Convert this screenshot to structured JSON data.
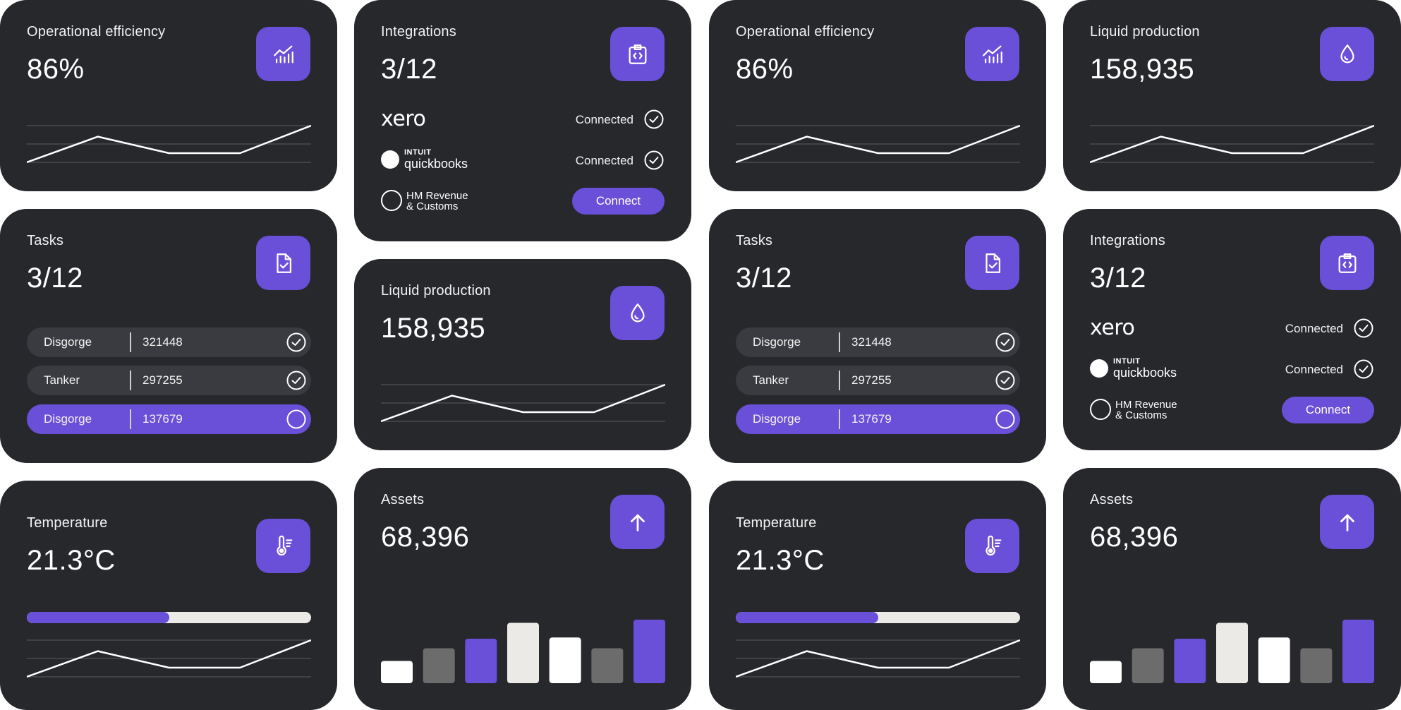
{
  "colors": {
    "card": "#26282c",
    "accent": "#6a4fd8",
    "light": "#eceae6",
    "white": "#ffffff",
    "grey": "#6c6c6c",
    "grid": "#5a5c60"
  },
  "efficiency": {
    "title": "Operational efficiency",
    "value": "86%",
    "icon": "chart-icon",
    "trend": [
      0,
      0.7,
      0.25,
      0.25,
      1.0
    ]
  },
  "integrations": {
    "title": "Integrations",
    "value": "3/12",
    "icon": "code-clipboard-icon",
    "items": [
      {
        "logo": "xero",
        "status": "Connected"
      },
      {
        "logo_small": "INTUIT",
        "logo": "quickbooks",
        "status": "Connected"
      },
      {
        "logo_line1": "HM Revenue",
        "logo_line2": "& Customs",
        "action": "Connect"
      }
    ]
  },
  "liquid": {
    "title": "Liquid production",
    "value": "158,935",
    "icon": "droplet-icon",
    "trend": [
      0,
      0.7,
      0.25,
      0.25,
      1.0
    ]
  },
  "tasks": {
    "title": "Tasks",
    "value": "3/12",
    "icon": "document-check-icon",
    "items": [
      {
        "name": "Disgorge",
        "number": "321448",
        "done": true
      },
      {
        "name": "Tanker",
        "number": "297255",
        "done": true
      },
      {
        "name": "Disgorge",
        "number": "137679",
        "done": false
      }
    ]
  },
  "temperature": {
    "title": "Temperature",
    "value": "21.3°C",
    "icon": "thermometer-icon",
    "progress": 0.5,
    "trend": [
      0,
      0.7,
      0.25,
      0.25,
      1.0
    ]
  },
  "assets": {
    "title": "Assets",
    "value": "68,396",
    "icon": "arrow-up-icon",
    "bars": [
      {
        "value": 0.35,
        "color": "white"
      },
      {
        "value": 0.55,
        "color": "grey"
      },
      {
        "value": 0.7,
        "color": "accent"
      },
      {
        "value": 0.95,
        "color": "light"
      },
      {
        "value": 0.72,
        "color": "white"
      },
      {
        "value": 0.55,
        "color": "grey"
      },
      {
        "value": 1.0,
        "color": "accent"
      }
    ]
  }
}
